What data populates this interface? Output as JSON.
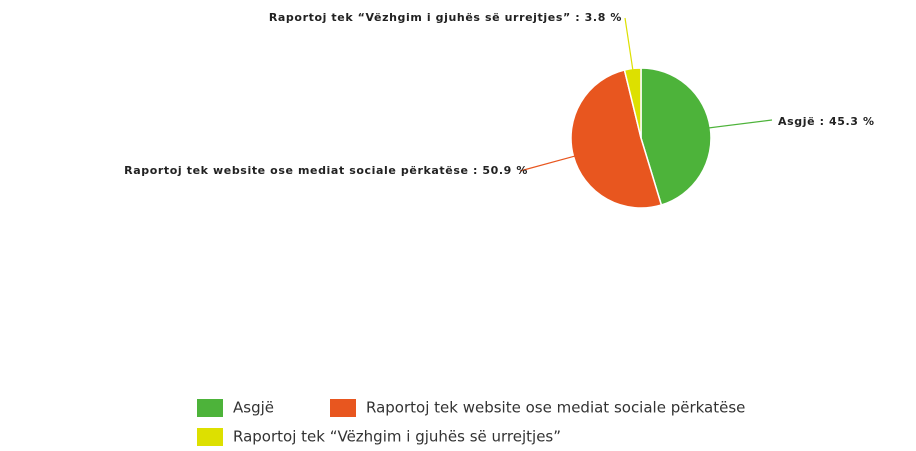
{
  "chart_data": {
    "type": "pie",
    "categories": [
      "Asgjë",
      "Raportoj tek website ose mediat sociale përkatëse",
      "Raportoj tek “Vëzhgim i gjuhës së urrejtjes”"
    ],
    "values": [
      45.3,
      50.9,
      3.8
    ],
    "value_labels": [
      "Asgjë : 45.3 %",
      "Raportoj tek website ose mediat sociale përkatëse : 50.9 %",
      "Raportoj tek “Vëzhgim i gjuhës së urrejtjes” : 3.8 %"
    ],
    "colors": [
      "#4db33a",
      "#e8561f",
      "#dde000"
    ],
    "legend": "bottom"
  }
}
